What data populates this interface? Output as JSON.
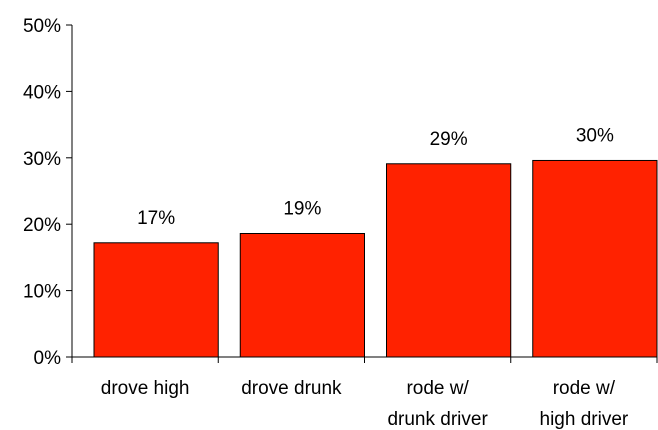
{
  "chart_data": {
    "type": "bar",
    "categories": [
      [
        "drove high"
      ],
      [
        "drove drunk"
      ],
      [
        "rode w/",
        "drunk driver"
      ],
      [
        "rode w/",
        "high driver"
      ]
    ],
    "values": [
      17.2,
      18.6,
      29.1,
      29.6
    ],
    "data_labels": [
      "17%",
      "19%",
      "29%",
      "30%"
    ],
    "y_ticks": [
      "0%",
      "10%",
      "20%",
      "30%",
      "40%",
      "50%"
    ],
    "ylim": [
      0,
      50
    ],
    "bar_color": "#ff2200",
    "grid": false,
    "legend": "none"
  }
}
